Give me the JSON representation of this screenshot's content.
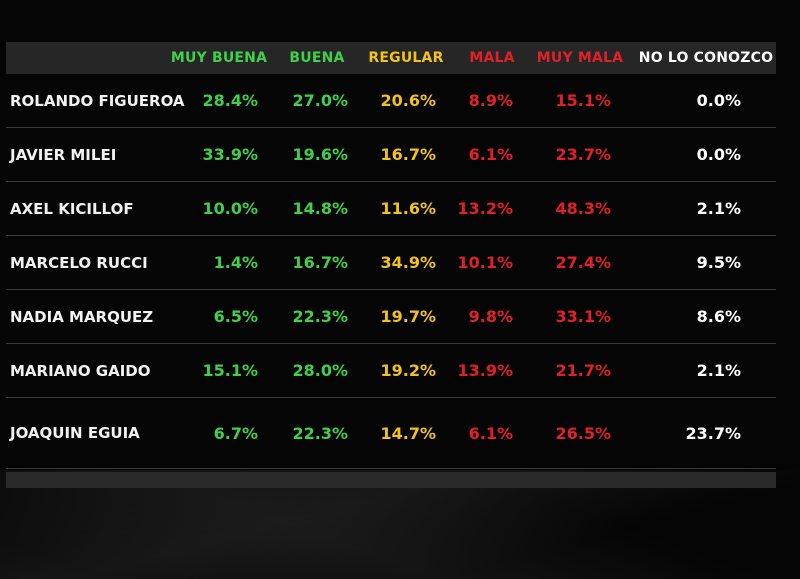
{
  "chart_data": {
    "type": "table",
    "colors": {
      "muy_buena": "#3fd14a",
      "buena": "#3fd14a",
      "regular": "#f2c319",
      "mala": "#e2202a",
      "muy_mala": "#e2202a",
      "no_lo_conozco": "#ffffff"
    },
    "columns": [
      {
        "key": "muy_buena",
        "label": "MUY BUENA"
      },
      {
        "key": "buena",
        "label": "BUENA"
      },
      {
        "key": "regular",
        "label": "REGULAR"
      },
      {
        "key": "mala",
        "label": "MALA"
      },
      {
        "key": "muy_mala",
        "label": "MUY MALA"
      },
      {
        "key": "no_lo_conozco",
        "label": "NO LO CONOZCO"
      }
    ],
    "rows": [
      {
        "name": "ROLANDO FIGUEROA",
        "values": [
          "28.4%",
          "27.0%",
          "20.6%",
          "8.9%",
          "15.1%",
          "0.0%"
        ]
      },
      {
        "name": "JAVIER MILEI",
        "values": [
          "33.9%",
          "19.6%",
          "16.7%",
          "6.1%",
          "23.7%",
          "0.0%"
        ]
      },
      {
        "name": "AXEL KICILLOF",
        "values": [
          "10.0%",
          "14.8%",
          "11.6%",
          "13.2%",
          "48.3%",
          "2.1%"
        ]
      },
      {
        "name": "MARCELO RUCCI",
        "values": [
          "1.4%",
          "16.7%",
          "34.9%",
          "10.1%",
          "27.4%",
          "9.5%"
        ]
      },
      {
        "name": "NADIA MARQUEZ",
        "values": [
          "6.5%",
          "22.3%",
          "19.7%",
          "9.8%",
          "33.1%",
          "8.6%"
        ]
      },
      {
        "name": "MARIANO GAIDO",
        "values": [
          "15.1%",
          "28.0%",
          "19.2%",
          "13.9%",
          "21.7%",
          "2.1%"
        ]
      },
      {
        "name": "JOAQUIN EGUIA",
        "values": [
          "6.7%",
          "22.3%",
          "14.7%",
          "6.1%",
          "26.5%",
          "23.7%"
        ]
      }
    ]
  }
}
